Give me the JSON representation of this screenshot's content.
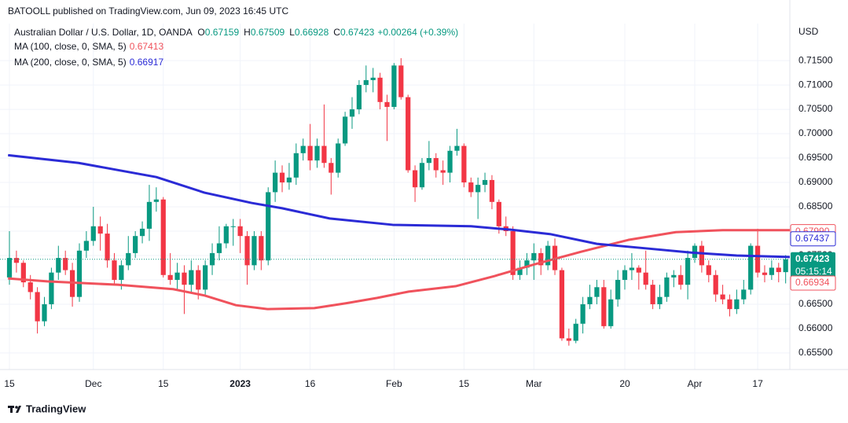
{
  "header": "BATOOLL published on TradingView.com, Jun 09, 2023 16:45 UTC",
  "footer": "TradingView",
  "chart_data": {
    "type": "candlestick",
    "currency": "USD",
    "legend": {
      "symbol": "Australian Dollar / U.S. Dollar, 1D, OANDA",
      "ohlc_letters": [
        "O",
        "H",
        "L",
        "C"
      ],
      "change": "+0.00264 (+0.39%)"
    },
    "up_color": "#089981",
    "down_color": "#f23645",
    "open": [
      0.6705,
      0.6745,
      0.6735,
      0.6695,
      0.6675,
      0.6615,
      0.665,
      0.6715,
      0.6745,
      0.672,
      0.6665,
      0.676,
      0.678,
      0.681,
      0.6795,
      0.674,
      0.67,
      0.673,
      0.6755,
      0.679,
      0.6805,
      0.686,
      0.6865,
      0.671,
      0.67,
      0.6715,
      0.669,
      0.672,
      0.668,
      0.673,
      0.6755,
      0.6775,
      0.681,
      0.681,
      0.679,
      0.673,
      0.679,
      0.674,
      0.688,
      0.692,
      0.69,
      0.691,
      0.696,
      0.6975,
      0.6945,
      0.6975,
      0.694,
      0.692,
      0.698,
      0.7035,
      0.705,
      0.71,
      0.711,
      0.7115,
      0.7065,
      0.7055,
      0.714,
      0.7075,
      0.6925,
      0.689,
      0.694,
      0.695,
      0.6925,
      0.692,
      0.6965,
      0.6975,
      0.69,
      0.688,
      0.6895,
      0.6905,
      0.686,
      0.681,
      0.68,
      0.671,
      0.6725,
      0.674,
      0.6755,
      0.673,
      0.677,
      0.672,
      0.658,
      0.6575,
      0.661,
      0.665,
      0.6665,
      0.6685,
      0.6605,
      0.666,
      0.67,
      0.672,
      0.6725,
      0.6715,
      0.669,
      0.665,
      0.6665,
      0.6705,
      0.671,
      0.669,
      0.6745,
      0.677,
      0.673,
      0.671,
      0.667,
      0.666,
      0.664,
      0.666,
      0.668,
      0.677,
      0.6715,
      0.671,
      0.6725,
      0.67159
    ],
    "high": [
      0.68,
      0.676,
      0.674,
      0.671,
      0.6685,
      0.6665,
      0.6725,
      0.677,
      0.676,
      0.6735,
      0.6775,
      0.68,
      0.685,
      0.683,
      0.6815,
      0.6755,
      0.674,
      0.679,
      0.68,
      0.682,
      0.6895,
      0.689,
      0.687,
      0.6755,
      0.6735,
      0.673,
      0.674,
      0.673,
      0.674,
      0.6775,
      0.681,
      0.6815,
      0.6825,
      0.6825,
      0.68,
      0.68,
      0.68,
      0.689,
      0.6945,
      0.6935,
      0.694,
      0.698,
      0.699,
      0.702,
      0.699,
      0.706,
      0.695,
      0.699,
      0.7045,
      0.7075,
      0.711,
      0.714,
      0.7135,
      0.7125,
      0.708,
      0.7145,
      0.7155,
      0.708,
      0.6935,
      0.695,
      0.6985,
      0.696,
      0.6945,
      0.6975,
      0.701,
      0.698,
      0.691,
      0.691,
      0.692,
      0.6915,
      0.6865,
      0.683,
      0.681,
      0.674,
      0.6755,
      0.6775,
      0.6765,
      0.678,
      0.6785,
      0.6725,
      0.66,
      0.662,
      0.6665,
      0.669,
      0.67,
      0.67,
      0.668,
      0.672,
      0.673,
      0.6755,
      0.673,
      0.676,
      0.67,
      0.669,
      0.6715,
      0.672,
      0.673,
      0.676,
      0.6775,
      0.678,
      0.674,
      0.672,
      0.669,
      0.667,
      0.668,
      0.67,
      0.6775,
      0.6805,
      0.673,
      0.674,
      0.6735,
      0.67509
    ],
    "low": [
      0.669,
      0.6715,
      0.6685,
      0.666,
      0.659,
      0.6605,
      0.664,
      0.67,
      0.671,
      0.6645,
      0.6655,
      0.6745,
      0.677,
      0.676,
      0.6725,
      0.669,
      0.668,
      0.672,
      0.6745,
      0.6775,
      0.678,
      0.684,
      0.6705,
      0.669,
      0.668,
      0.663,
      0.6675,
      0.666,
      0.667,
      0.671,
      0.674,
      0.6765,
      0.677,
      0.6755,
      0.669,
      0.672,
      0.672,
      0.673,
      0.686,
      0.688,
      0.6885,
      0.6895,
      0.6945,
      0.6925,
      0.693,
      0.693,
      0.6875,
      0.691,
      0.6975,
      0.701,
      0.704,
      0.7085,
      0.7085,
      0.705,
      0.6985,
      0.705,
      0.707,
      0.692,
      0.686,
      0.6885,
      0.6925,
      0.691,
      0.6895,
      0.69,
      0.6955,
      0.689,
      0.687,
      0.6825,
      0.688,
      0.6845,
      0.6795,
      0.679,
      0.67,
      0.67,
      0.671,
      0.67,
      0.671,
      0.672,
      0.671,
      0.6575,
      0.6565,
      0.657,
      0.659,
      0.664,
      0.665,
      0.66,
      0.66,
      0.6645,
      0.668,
      0.67,
      0.668,
      0.668,
      0.664,
      0.664,
      0.6655,
      0.6685,
      0.668,
      0.666,
      0.6735,
      0.6715,
      0.6695,
      0.6655,
      0.665,
      0.6625,
      0.663,
      0.665,
      0.667,
      0.6705,
      0.6695,
      0.67,
      0.6695,
      0.66928
    ],
    "close": [
      0.6745,
      0.6735,
      0.6695,
      0.6675,
      0.6615,
      0.665,
      0.6715,
      0.6745,
      0.672,
      0.6665,
      0.676,
      0.678,
      0.681,
      0.6795,
      0.674,
      0.67,
      0.673,
      0.6755,
      0.679,
      0.6805,
      0.686,
      0.6865,
      0.671,
      0.67,
      0.6715,
      0.669,
      0.672,
      0.668,
      0.673,
      0.6755,
      0.6775,
      0.681,
      0.681,
      0.679,
      0.673,
      0.679,
      0.674,
      0.688,
      0.692,
      0.69,
      0.691,
      0.696,
      0.6975,
      0.6945,
      0.6975,
      0.694,
      0.692,
      0.698,
      0.7035,
      0.705,
      0.71,
      0.711,
      0.7115,
      0.7065,
      0.7055,
      0.714,
      0.7075,
      0.6925,
      0.689,
      0.694,
      0.695,
      0.6925,
      0.692,
      0.6965,
      0.6975,
      0.69,
      0.688,
      0.6895,
      0.6905,
      0.686,
      0.681,
      0.68,
      0.671,
      0.6725,
      0.674,
      0.6755,
      0.673,
      0.677,
      0.672,
      0.658,
      0.6575,
      0.661,
      0.665,
      0.6665,
      0.6685,
      0.6605,
      0.666,
      0.67,
      0.672,
      0.6725,
      0.6715,
      0.669,
      0.665,
      0.6665,
      0.6705,
      0.671,
      0.669,
      0.6745,
      0.677,
      0.673,
      0.671,
      0.667,
      0.666,
      0.664,
      0.666,
      0.668,
      0.677,
      0.6715,
      0.671,
      0.6725,
      0.6716,
      0.67423
    ],
    "series": [
      {
        "name": "MA (100, close, 0, SMA, 5)",
        "color": "#f0525c",
        "legend_value": 0.67413,
        "x": [
          -0.2,
          5.4,
          15.5,
          23.4,
          27.9,
          32.4,
          36.9,
          43.6,
          48.1,
          52.6,
          57.1,
          63.8,
          69.4,
          75.1,
          81.8,
          88.5,
          95.3,
          102,
          111.6
        ],
        "values": [
          0.6703,
          0.6697,
          0.669,
          0.6681,
          0.6668,
          0.6648,
          0.664,
          0.6642,
          0.6652,
          0.6663,
          0.6676,
          0.6687,
          0.6708,
          0.6732,
          0.6758,
          0.6782,
          0.6798,
          0.6802,
          0.6802
        ]
      },
      {
        "name": "MA (200, close, 0, SMA, 5)",
        "color": "#2b2bd6",
        "legend_value": 0.66917,
        "x": [
          -0.2,
          9.9,
          21,
          27.9,
          34.6,
          39,
          45.8,
          54.8,
          66,
          71.7,
          77.3,
          84,
          90.8,
          97.5,
          104,
          111.6
        ],
        "values": [
          0.6956,
          0.694,
          0.6911,
          0.6879,
          0.6858,
          0.6847,
          0.6826,
          0.6813,
          0.681,
          0.6803,
          0.6794,
          0.6774,
          0.6765,
          0.6756,
          0.675,
          0.6747
        ]
      }
    ],
    "price_labels": [
      {
        "value": 0.6799,
        "label": "0.67990",
        "color": "#f0525c"
      },
      {
        "value": 0.67437,
        "label": "0.67437",
        "color": "#2b2bd6"
      },
      {
        "value": 0.67423,
        "label": "0.67423",
        "color": "#089981",
        "countdown": "05:15:14"
      },
      {
        "value": 0.66934,
        "label": "0.66934",
        "color": "#f0525c"
      }
    ],
    "xlim": [
      -1.35,
      111.6
    ],
    "ylim": [
      0.6516,
      0.7226
    ],
    "xticks": [
      {
        "value": 0,
        "label": "15"
      },
      {
        "value": 12,
        "label": "Dec"
      },
      {
        "value": 22,
        "label": "15"
      },
      {
        "value": 33,
        "label": "2023"
      },
      {
        "value": 43,
        "label": "16"
      },
      {
        "value": 55,
        "label": "Feb"
      },
      {
        "value": 65,
        "label": "15"
      },
      {
        "value": 75,
        "label": "Mar"
      },
      {
        "value": 88,
        "label": "20"
      },
      {
        "value": 98,
        "label": "Apr"
      },
      {
        "value": 107,
        "label": "17"
      }
    ],
    "yticks": [
      {
        "value": 0.655,
        "label": "0.65500"
      },
      {
        "value": 0.66,
        "label": "0.66000"
      },
      {
        "value": 0.665,
        "label": "0.66500"
      },
      {
        "value": 0.67,
        "label": "0.67000"
      },
      {
        "value": 0.675,
        "label": "0.67500"
      },
      {
        "value": 0.68,
        "label": "0.68000"
      },
      {
        "value": 0.685,
        "label": "0.68500"
      },
      {
        "value": 0.69,
        "label": "0.69000"
      },
      {
        "value": 0.695,
        "label": "0.69500"
      },
      {
        "value": 0.7,
        "label": "0.70000"
      },
      {
        "value": 0.705,
        "label": "0.70500"
      },
      {
        "value": 0.71,
        "label": "0.71000"
      },
      {
        "value": 0.715,
        "label": "0.71500"
      }
    ],
    "grid": true
  }
}
